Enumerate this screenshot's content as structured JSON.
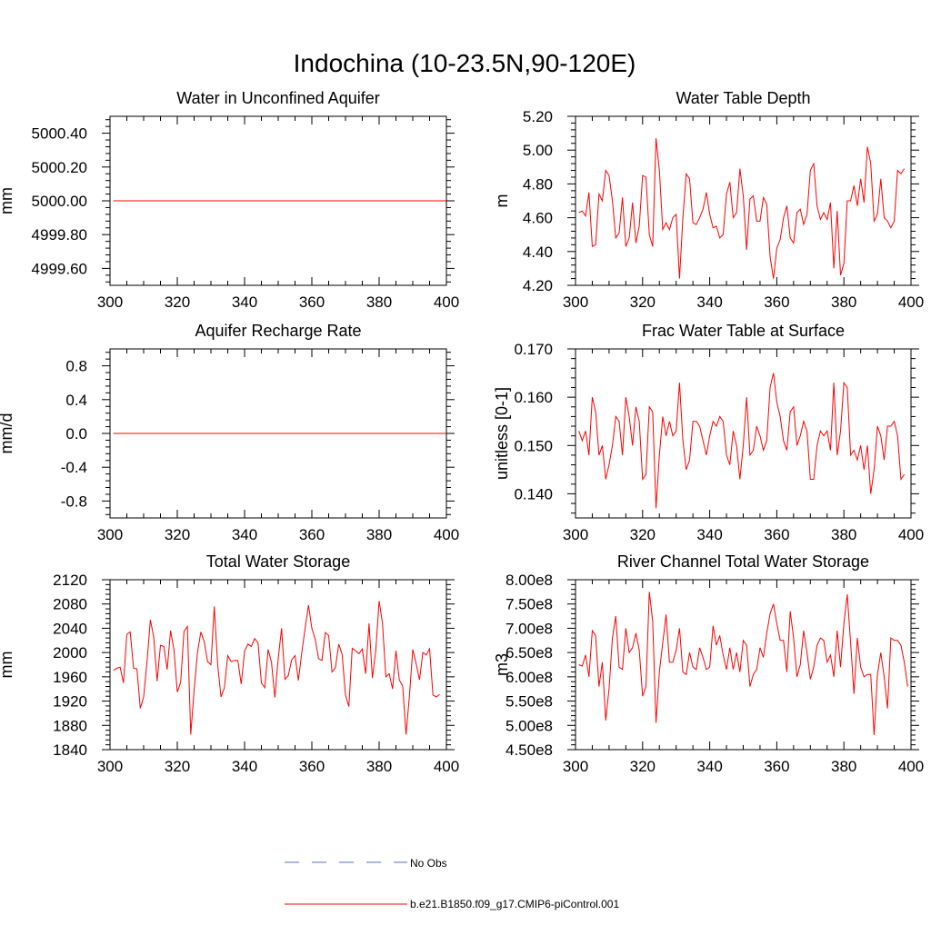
{
  "figure": {
    "title": "Indochina (10-23.5N,90-120E)",
    "legend": [
      {
        "label": "No Obs",
        "color": "#5a6fc0",
        "dash": true
      },
      {
        "label": "b.e21.B1850.f09_g17.CMIP6-piControl.001",
        "color": "#ff0000",
        "dash": false
      }
    ]
  },
  "chart_data": [
    {
      "type": "line",
      "title": "Water in Unconfined Aquifer",
      "ylabel": "mm",
      "xlim": [
        300,
        400
      ],
      "ylim": [
        4999.5,
        5000.5
      ],
      "xticks": [
        300,
        320,
        340,
        360,
        380,
        400
      ],
      "xtick_labels": [
        "300",
        "320",
        "340",
        "360",
        "380",
        "400"
      ],
      "yticks": [
        4999.6,
        4999.8,
        5000.0,
        5000.2,
        5000.4
      ],
      "ytick_labels": [
        "4999.60",
        "4999.80",
        "5000.00",
        "5000.20",
        "5000.40"
      ],
      "x_start": 301,
      "x_step": 1,
      "series": [
        {
          "name": "b.e21.B1850.f09_g17.CMIP6-piControl.001",
          "color": "#ff0000",
          "values": [
            5000,
            5000,
            5000,
            5000,
            5000,
            5000,
            5000,
            5000,
            5000,
            5000,
            5000,
            5000,
            5000,
            5000,
            5000,
            5000,
            5000,
            5000,
            5000,
            5000,
            5000,
            5000,
            5000,
            5000,
            5000,
            5000,
            5000,
            5000,
            5000,
            5000,
            5000,
            5000,
            5000,
            5000,
            5000,
            5000,
            5000,
            5000,
            5000,
            5000,
            5000,
            5000,
            5000,
            5000,
            5000,
            5000,
            5000,
            5000,
            5000,
            5000,
            5000,
            5000,
            5000,
            5000,
            5000,
            5000,
            5000,
            5000,
            5000,
            5000,
            5000,
            5000,
            5000,
            5000,
            5000,
            5000,
            5000,
            5000,
            5000,
            5000,
            5000,
            5000,
            5000,
            5000,
            5000,
            5000,
            5000,
            5000,
            5000,
            5000,
            5000,
            5000,
            5000,
            5000,
            5000,
            5000,
            5000,
            5000,
            5000,
            5000,
            5000,
            5000,
            5000,
            5000,
            5000,
            5000,
            5000,
            5000,
            5000,
            5000
          ]
        }
      ]
    },
    {
      "type": "line",
      "title": "Water Table Depth",
      "ylabel": "m",
      "xlim": [
        300,
        400
      ],
      "ylim": [
        4.2,
        5.2
      ],
      "xticks": [
        300,
        320,
        340,
        360,
        380,
        400
      ],
      "xtick_labels": [
        "300",
        "320",
        "340",
        "360",
        "380",
        "400"
      ],
      "yticks": [
        4.2,
        4.4,
        4.6,
        4.8,
        5.0,
        5.2
      ],
      "ytick_labels": [
        "4.20",
        "4.40",
        "4.60",
        "4.80",
        "5.00",
        "5.20"
      ],
      "x_start": 301,
      "x_step": 1,
      "series": [
        {
          "name": "b.e21.B1850.f09_g17.CMIP6-piControl.001",
          "color": "#ff0000",
          "values": [
            4.63,
            4.64,
            4.61,
            4.75,
            4.43,
            4.44,
            4.74,
            4.7,
            4.88,
            4.85,
            4.7,
            4.48,
            4.51,
            4.72,
            4.43,
            4.48,
            4.69,
            4.45,
            4.55,
            4.85,
            4.84,
            4.5,
            4.43,
            5.07,
            4.88,
            4.53,
            4.57,
            4.53,
            4.6,
            4.62,
            4.24,
            4.6,
            4.86,
            4.83,
            4.57,
            4.56,
            4.6,
            4.65,
            4.75,
            4.62,
            4.54,
            4.55,
            4.48,
            4.5,
            4.74,
            4.81,
            4.6,
            4.63,
            4.89,
            4.73,
            4.41,
            4.71,
            4.73,
            4.58,
            4.58,
            4.72,
            4.68,
            4.37,
            4.24,
            4.42,
            4.47,
            4.6,
            4.67,
            4.48,
            4.45,
            4.63,
            4.65,
            4.56,
            4.62,
            4.88,
            4.92,
            4.67,
            4.59,
            4.63,
            4.59,
            4.69,
            4.3,
            4.64,
            4.26,
            4.33,
            4.7,
            4.7,
            4.79,
            4.67,
            4.83,
            4.69,
            5.02,
            4.92,
            4.58,
            4.62,
            4.83,
            4.6,
            4.58,
            4.54,
            4.58,
            4.88,
            4.86,
            4.89
          ]
        }
      ]
    },
    {
      "type": "line",
      "title": "Aquifer Recharge Rate",
      "ylabel": "mm/d",
      "xlim": [
        300,
        400
      ],
      "ylim": [
        -1.0,
        1.0
      ],
      "xticks": [
        300,
        320,
        340,
        360,
        380,
        400
      ],
      "xtick_labels": [
        "300",
        "320",
        "340",
        "360",
        "380",
        "400"
      ],
      "yticks": [
        -0.8,
        -0.4,
        0.0,
        0.4,
        0.8
      ],
      "ytick_labels": [
        "-0.8",
        "-0.4",
        "0.0",
        "0.4",
        "0.8"
      ],
      "x_start": 301,
      "x_step": 1,
      "series": [
        {
          "name": "b.e21.B1850.f09_g17.CMIP6-piControl.001",
          "color": "#ff0000",
          "values": [
            0,
            0,
            0,
            0,
            0,
            0,
            0,
            0,
            0,
            0,
            0,
            0,
            0,
            0,
            0,
            0,
            0,
            0,
            0,
            0,
            0,
            0,
            0,
            0,
            0,
            0,
            0,
            0,
            0,
            0,
            0,
            0,
            0,
            0,
            0,
            0,
            0,
            0,
            0,
            0,
            0,
            0,
            0,
            0,
            0,
            0,
            0,
            0,
            0,
            0,
            0,
            0,
            0,
            0,
            0,
            0,
            0,
            0,
            0,
            0,
            0,
            0,
            0,
            0,
            0,
            0,
            0,
            0,
            0,
            0,
            0,
            0,
            0,
            0,
            0,
            0,
            0,
            0,
            0,
            0,
            0,
            0,
            0,
            0,
            0,
            0,
            0,
            0,
            0,
            0,
            0,
            0,
            0,
            0,
            0,
            0,
            0,
            0,
            0,
            0
          ]
        }
      ]
    },
    {
      "type": "line",
      "title": "Frac Water Table at Surface",
      "ylabel": "unitless [0-1]",
      "xlim": [
        300,
        400
      ],
      "ylim": [
        0.135,
        0.17
      ],
      "xticks": [
        300,
        320,
        340,
        360,
        380,
        400
      ],
      "xtick_labels": [
        "300",
        "320",
        "340",
        "360",
        "380",
        "400"
      ],
      "yticks": [
        0.14,
        0.15,
        0.16,
        0.17
      ],
      "ytick_labels": [
        "0.140",
        "0.150",
        "0.160",
        "0.170"
      ],
      "x_start": 301,
      "x_step": 1,
      "series": [
        {
          "name": "b.e21.B1850.f09_g17.CMIP6-piControl.001",
          "color": "#ff0000",
          "values": [
            0.153,
            0.151,
            0.153,
            0.148,
            0.16,
            0.157,
            0.148,
            0.15,
            0.143,
            0.146,
            0.15,
            0.156,
            0.155,
            0.148,
            0.16,
            0.156,
            0.15,
            0.158,
            0.155,
            0.143,
            0.144,
            0.158,
            0.157,
            0.137,
            0.148,
            0.156,
            0.152,
            0.155,
            0.152,
            0.153,
            0.163,
            0.151,
            0.145,
            0.147,
            0.155,
            0.155,
            0.154,
            0.151,
            0.148,
            0.152,
            0.155,
            0.154,
            0.156,
            0.155,
            0.148,
            0.146,
            0.153,
            0.15,
            0.143,
            0.15,
            0.16,
            0.148,
            0.149,
            0.154,
            0.152,
            0.149,
            0.151,
            0.162,
            0.165,
            0.159,
            0.156,
            0.151,
            0.149,
            0.157,
            0.158,
            0.15,
            0.152,
            0.155,
            0.153,
            0.143,
            0.143,
            0.15,
            0.153,
            0.152,
            0.153,
            0.149,
            0.163,
            0.148,
            0.153,
            0.163,
            0.162,
            0.148,
            0.149,
            0.147,
            0.15,
            0.145,
            0.15,
            0.14,
            0.145,
            0.154,
            0.152,
            0.147,
            0.154,
            0.154,
            0.155,
            0.152,
            0.143,
            0.144
          ]
        }
      ]
    },
    {
      "type": "line",
      "title": "Total Water Storage",
      "ylabel": "mm",
      "xlim": [
        300,
        400
      ],
      "ylim": [
        1840,
        2120
      ],
      "xticks": [
        300,
        320,
        340,
        360,
        380,
        400
      ],
      "xtick_labels": [
        "300",
        "320",
        "340",
        "360",
        "380",
        "400"
      ],
      "yticks": [
        1840,
        1880,
        1920,
        1960,
        2000,
        2040,
        2080,
        2120
      ],
      "ytick_labels": [
        "1840",
        "1880",
        "1920",
        "1960",
        "2000",
        "2040",
        "2080",
        "2120"
      ],
      "x_start": 301,
      "x_step": 1,
      "series": [
        {
          "name": "b.e21.B1850.f09_g17.CMIP6-piControl.001",
          "color": "#ff0000",
          "values": [
            1971,
            1974,
            1976,
            1950,
            2030,
            2034,
            1974,
            1973,
            1908,
            1927,
            1985,
            2054,
            2025,
            1953,
            2012,
            2010,
            1972,
            2036,
            2005,
            1935,
            1951,
            2035,
            2043,
            1865,
            1938,
            2000,
            2034,
            2018,
            1985,
            1980,
            2076,
            1980,
            1927,
            1942,
            1995,
            1985,
            1987,
            1987,
            1948,
            2002,
            2014,
            2010,
            2023,
            2016,
            1950,
            1942,
            2005,
            1984,
            1926,
            1990,
            2040,
            1956,
            1962,
            1988,
            1995,
            1954,
            2000,
            2040,
            2078,
            2040,
            2022,
            1990,
            1987,
            2033,
            2028,
            1968,
            1975,
            2014,
            1997,
            1930,
            1911,
            2007,
            2003,
            1998,
            2006,
            1965,
            2048,
            1958,
            2003,
            2085,
            2048,
            1960,
            1965,
            1940,
            2003,
            1955,
            1945,
            1865,
            1928,
            2005,
            1982,
            1955,
            2000,
            1996,
            2006,
            1930,
            1927,
            1931
          ]
        }
      ]
    },
    {
      "type": "line",
      "title": "River Channel Total Water Storage",
      "ylabel": "m3",
      "xlim": [
        300,
        400
      ],
      "ylim": [
        450000000,
        800000000
      ],
      "xticks": [
        300,
        320,
        340,
        360,
        380,
        400
      ],
      "xtick_labels": [
        "300",
        "320",
        "340",
        "360",
        "380",
        "400"
      ],
      "yticks": [
        450000000,
        500000000,
        550000000,
        600000000,
        650000000,
        700000000,
        750000000,
        800000000
      ],
      "ytick_labels": [
        "4.50e8",
        "5.00e8",
        "5.50e8",
        "6.00e8",
        "6.50e8",
        "7.00e8",
        "7.50e8",
        "8.00e8"
      ],
      "x_start": 301,
      "x_step": 1,
      "series": [
        {
          "name": "b.e21.B1850.f09_g17.CMIP6-piControl.001",
          "color": "#ff0000",
          "values": [
            625000000,
            622000000,
            645000000,
            600000000,
            695000000,
            685000000,
            580000000,
            630000000,
            510000000,
            575000000,
            680000000,
            725000000,
            620000000,
            615000000,
            700000000,
            650000000,
            660000000,
            690000000,
            655000000,
            560000000,
            580000000,
            775000000,
            715000000,
            505000000,
            610000000,
            670000000,
            728000000,
            630000000,
            630000000,
            655000000,
            700000000,
            610000000,
            605000000,
            650000000,
            620000000,
            615000000,
            660000000,
            640000000,
            615000000,
            620000000,
            705000000,
            665000000,
            685000000,
            645000000,
            615000000,
            660000000,
            615000000,
            650000000,
            610000000,
            675000000,
            665000000,
            580000000,
            605000000,
            615000000,
            660000000,
            640000000,
            690000000,
            730000000,
            750000000,
            710000000,
            675000000,
            675000000,
            610000000,
            735000000,
            680000000,
            600000000,
            625000000,
            695000000,
            650000000,
            595000000,
            620000000,
            665000000,
            680000000,
            675000000,
            630000000,
            645000000,
            600000000,
            695000000,
            620000000,
            710000000,
            770000000,
            670000000,
            565000000,
            680000000,
            620000000,
            600000000,
            605000000,
            605000000,
            480000000,
            605000000,
            650000000,
            600000000,
            535000000,
            680000000,
            675000000,
            675000000,
            665000000,
            630000000,
            580000000
          ]
        }
      ]
    }
  ]
}
